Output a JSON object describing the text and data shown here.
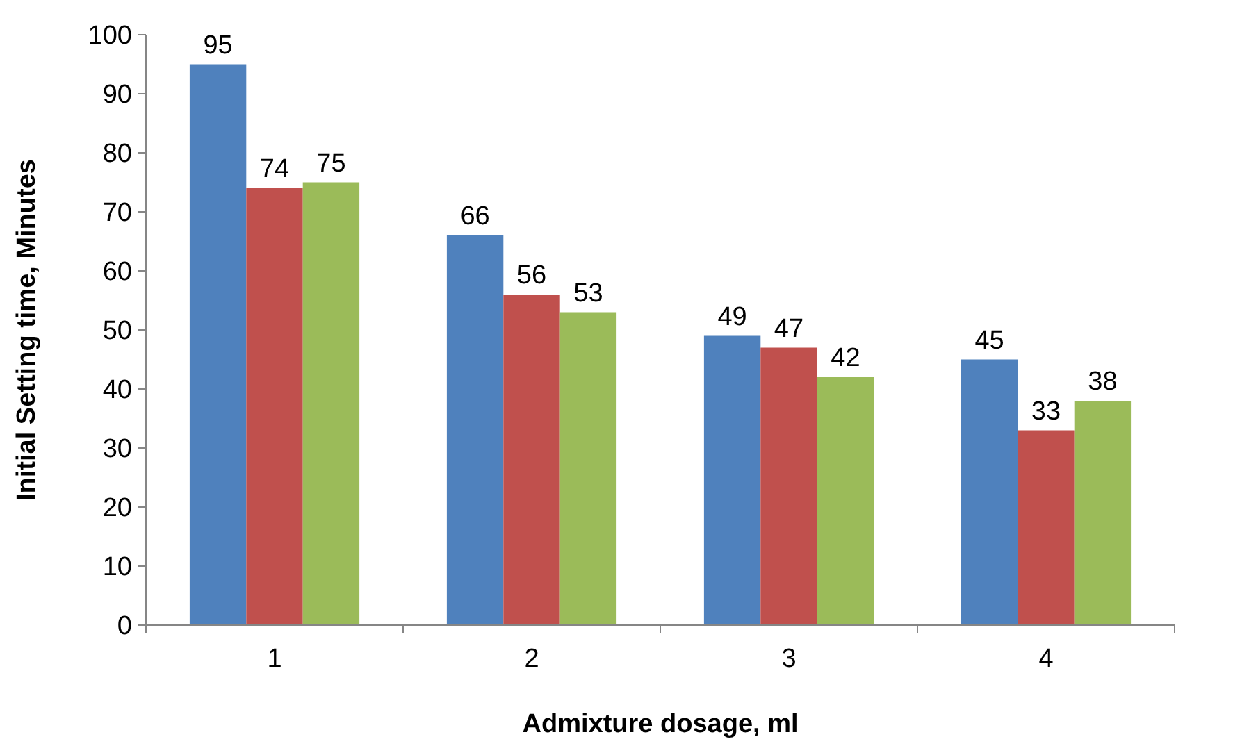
{
  "chart_data": {
    "type": "bar",
    "xlabel": "Admixture dosage, ml",
    "ylabel": "Initial Setting time, Minutes",
    "categories": [
      "1",
      "2",
      "3",
      "4"
    ],
    "series": [
      {
        "color": "#4f81bd",
        "values": [
          95,
          66,
          49,
          45
        ]
      },
      {
        "color": "#c0504d",
        "values": [
          74,
          56,
          47,
          33
        ]
      },
      {
        "color": "#9bbb59",
        "values": [
          75,
          53,
          42,
          38
        ]
      }
    ],
    "ylim": [
      0,
      100
    ],
    "yticks": [
      0,
      10,
      20,
      30,
      40,
      50,
      60,
      70,
      80,
      90,
      100
    ],
    "data_labels": true,
    "grid": false,
    "legend": false
  }
}
